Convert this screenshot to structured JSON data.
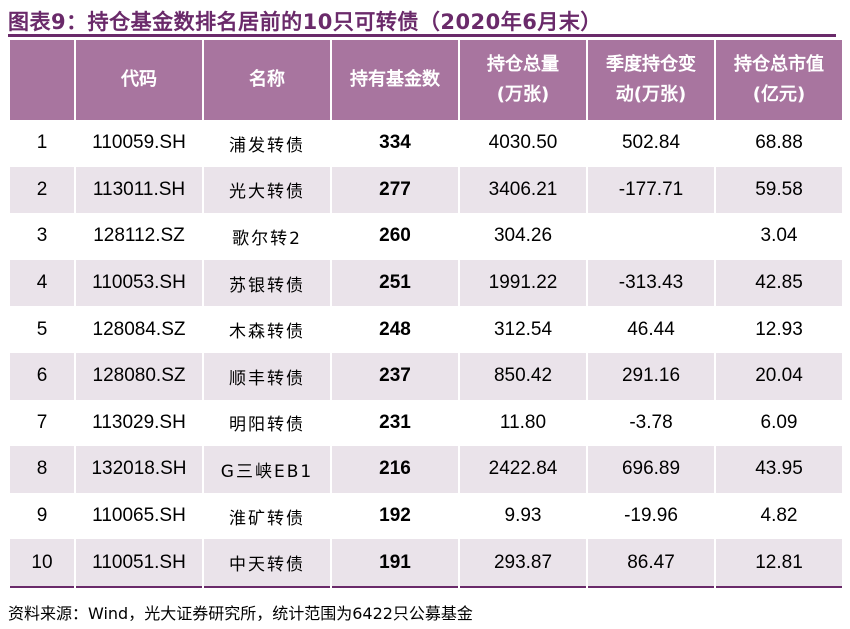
{
  "title": "图表9：持仓基金数排名居前的10只可转债（2020年6月末）",
  "columns": [
    {
      "line1": "",
      "line2": ""
    },
    {
      "line1": "代码",
      "line2": ""
    },
    {
      "line1": "名称",
      "line2": ""
    },
    {
      "line1": "持有基金数",
      "line2": ""
    },
    {
      "line1": "持仓总量",
      "line2": "(万张)"
    },
    {
      "line1": "季度持仓变",
      "line2": "动(万张)"
    },
    {
      "line1": "持仓总市值",
      "line2": "(亿元)"
    }
  ],
  "rows": [
    {
      "rank": "1",
      "code": "110059.SH",
      "name": "浦发转债",
      "funds": "334",
      "holding": "4030.50",
      "change": "502.84",
      "value": "68.88"
    },
    {
      "rank": "2",
      "code": "113011.SH",
      "name": "光大转债",
      "funds": "277",
      "holding": "3406.21",
      "change": "-177.71",
      "value": "59.58"
    },
    {
      "rank": "3",
      "code": "128112.SZ",
      "name": "歌尔转2",
      "funds": "260",
      "holding": "304.26",
      "change": "",
      "value": "3.04"
    },
    {
      "rank": "4",
      "code": "110053.SH",
      "name": "苏银转债",
      "funds": "251",
      "holding": "1991.22",
      "change": "-313.43",
      "value": "42.85"
    },
    {
      "rank": "5",
      "code": "128084.SZ",
      "name": "木森转债",
      "funds": "248",
      "holding": "312.54",
      "change": "46.44",
      "value": "12.93"
    },
    {
      "rank": "6",
      "code": "128080.SZ",
      "name": "顺丰转债",
      "funds": "237",
      "holding": "850.42",
      "change": "291.16",
      "value": "20.04"
    },
    {
      "rank": "7",
      "code": "113029.SH",
      "name": "明阳转债",
      "funds": "231",
      "holding": "11.80",
      "change": "-3.78",
      "value": "6.09"
    },
    {
      "rank": "8",
      "code": "132018.SH",
      "name": "G三峡EB1",
      "funds": "216",
      "holding": "2422.84",
      "change": "696.89",
      "value": "43.95"
    },
    {
      "rank": "9",
      "code": "110065.SH",
      "name": "淮矿转债",
      "funds": "192",
      "holding": "9.93",
      "change": "-19.96",
      "value": "4.82"
    },
    {
      "rank": "10",
      "code": "110051.SH",
      "name": "中天转债",
      "funds": "191",
      "holding": "293.87",
      "change": "86.47",
      "value": "12.81"
    }
  ],
  "source": "资料来源：Wind，光大证券研究所，统计范围为6422只公募基金",
  "colors": {
    "header_bg": "#a8759f",
    "title": "#6a2a6a",
    "shade": "#eae3ea"
  }
}
